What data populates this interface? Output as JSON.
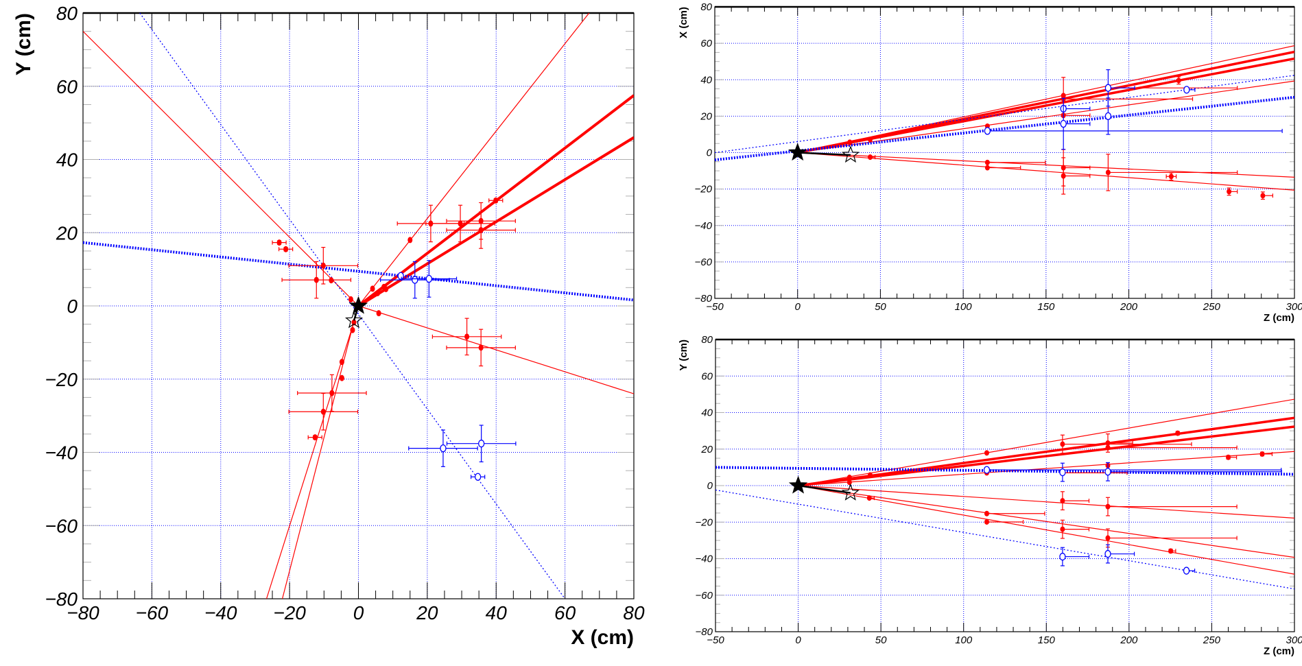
{
  "colors": {
    "track_red": "#ff0000",
    "track_blue": "#0000ff",
    "grid": "#0000ff",
    "vertex": "#000000"
  },
  "chart_data": [
    {
      "type": "scatter",
      "view": "XY",
      "xlabel": "X (cm)",
      "ylabel": "Y (cm)",
      "xlim": [
        -80,
        80
      ],
      "ylim": [
        -80,
        80
      ],
      "xticks": [
        "−80",
        "−60",
        "−40",
        "−20",
        "0",
        "20",
        "40",
        "60",
        "80"
      ],
      "yticks": [
        "−80",
        "−60",
        "−40",
        "−20",
        "0",
        "20",
        "40",
        "60",
        "80"
      ],
      "xtick_values": [
        -80,
        -60,
        -40,
        -20,
        0,
        20,
        40,
        60,
        80
      ],
      "ytick_values": [
        -80,
        -60,
        -40,
        -20,
        0,
        20,
        40,
        60,
        80
      ],
      "x_minor_step": 5,
      "y_minor_step": 5,
      "grid": true,
      "tracks": [
        {
          "color": "red",
          "style": "thick",
          "from": [
            0,
            0
          ],
          "to": [
            80,
            57.5
          ]
        },
        {
          "color": "red",
          "style": "thick",
          "from": [
            0,
            0
          ],
          "to": [
            80,
            46
          ]
        },
        {
          "color": "red",
          "style": "thin",
          "from": [
            0,
            0
          ],
          "to": [
            67,
            80
          ]
        },
        {
          "color": "red",
          "style": "thin",
          "from": [
            0,
            0
          ],
          "to": [
            -80,
            75
          ]
        },
        {
          "color": "red",
          "style": "thin",
          "from": [
            0,
            0
          ],
          "to": [
            80,
            -24
          ]
        },
        {
          "color": "red",
          "style": "thin",
          "from": [
            -1.5,
            -5
          ],
          "to": [
            -26.7,
            -80
          ]
        },
        {
          "color": "red",
          "style": "thin",
          "from": [
            -1.5,
            -5
          ],
          "to": [
            -22.1,
            -80
          ]
        },
        {
          "color": "blue",
          "style": "thick-dotted",
          "from": [
            -80,
            17.3
          ],
          "to": [
            80,
            1.6
          ]
        },
        {
          "color": "blue",
          "style": "thin-dotted",
          "from": [
            -63.5,
            80
          ],
          "to": [
            60,
            -80
          ]
        }
      ],
      "points": {
        "red": [
          [
            -23,
            17.3,
            2,
            2,
            0.5
          ],
          [
            -21.1,
            15.5,
            2,
            2,
            0.5
          ],
          [
            -10.2,
            11,
            10,
            10,
            5
          ],
          [
            -12.2,
            7.1,
            10,
            10,
            5
          ],
          [
            -7.9,
            7,
            0,
            0,
            0
          ],
          [
            -2.2,
            1.8,
            0,
            0,
            0
          ],
          [
            4.1,
            4.7,
            0,
            0,
            0
          ],
          [
            5.6,
            3.5,
            0,
            0,
            0
          ],
          [
            7.4,
            5.2,
            0,
            0,
            0
          ],
          [
            8,
            4.6,
            0,
            0,
            0
          ],
          [
            15,
            18,
            0,
            0,
            0
          ],
          [
            21,
            22.5,
            9.7,
            9.7,
            5
          ],
          [
            29.6,
            22.5,
            10,
            10,
            5
          ],
          [
            35.6,
            23.2,
            10,
            10,
            5
          ],
          [
            35.6,
            20.7,
            10,
            10,
            5
          ],
          [
            39.9,
            28.8,
            2,
            2,
            0.5
          ],
          [
            5.9,
            -2,
            0,
            0,
            0
          ],
          [
            31.5,
            -8.4,
            10,
            10,
            5
          ],
          [
            35.6,
            -11.4,
            10,
            10,
            5
          ],
          [
            -1.3,
            -4.5,
            0,
            0,
            0
          ],
          [
            -1.7,
            -6.6,
            0,
            0,
            0
          ],
          [
            -4.8,
            -15.3,
            0,
            0,
            0
          ],
          [
            -4.8,
            -19.7,
            0,
            0,
            0
          ],
          [
            -7.7,
            -23.8,
            10,
            10,
            5
          ],
          [
            -10.2,
            -28.9,
            10,
            10,
            5
          ],
          [
            -12.6,
            -35.9,
            2,
            2,
            0.5
          ]
        ],
        "blue": [
          [
            12.3,
            8.2,
            0,
            0,
            0
          ],
          [
            16.4,
            7.1,
            10,
            10,
            5
          ],
          [
            20.5,
            7.4,
            8,
            8,
            5
          ],
          [
            24.6,
            -38.9,
            10,
            10,
            5
          ],
          [
            35.7,
            -37.6,
            10,
            10,
            5
          ],
          [
            34.7,
            -46.7,
            2,
            2,
            0.5
          ]
        ]
      },
      "point_format": [
        "x",
        "y",
        "ex_low",
        "ex_high",
        "ey"
      ],
      "vertices": {
        "primary": [
          0,
          0
        ],
        "secondary": [
          -1.3,
          -4.0
        ]
      }
    },
    {
      "type": "scatter",
      "view": "ZX",
      "xlabel": "Z (cm)",
      "ylabel": "X (cm)",
      "xlim": [
        -50,
        300
      ],
      "ylim": [
        -80,
        80
      ],
      "xticks": [
        "−50",
        "0",
        "50",
        "100",
        "150",
        "200",
        "250",
        "300"
      ],
      "yticks": [
        "−80",
        "−60",
        "−40",
        "−20",
        "0",
        "20",
        "40",
        "60",
        "80"
      ],
      "xtick_values": [
        -50,
        0,
        50,
        100,
        150,
        200,
        250,
        300
      ],
      "ytick_values": [
        -80,
        -60,
        -40,
        -20,
        0,
        20,
        40,
        60,
        80
      ],
      "x_minor_step": 10,
      "y_minor_step": 5,
      "grid": true,
      "tracks": [
        {
          "color": "red",
          "style": "thick",
          "from": [
            0,
            0
          ],
          "to": [
            300,
            55.3
          ]
        },
        {
          "color": "red",
          "style": "thick",
          "from": [
            0,
            0
          ],
          "to": [
            300,
            51.6
          ]
        },
        {
          "color": "red",
          "style": "thin",
          "from": [
            0,
            0
          ],
          "to": [
            300,
            58.7
          ]
        },
        {
          "color": "red",
          "style": "thin",
          "from": [
            0,
            0
          ],
          "to": [
            300,
            39.3
          ]
        },
        {
          "color": "red",
          "style": "thin",
          "from": [
            0,
            0
          ],
          "to": [
            300,
            -13.5
          ]
        },
        {
          "color": "red",
          "style": "thin",
          "from": [
            0,
            0
          ],
          "to": [
            300,
            -20.6
          ]
        },
        {
          "color": "blue",
          "style": "thick-dotted",
          "from": [
            -50,
            -4
          ],
          "to": [
            300,
            30.4
          ]
        },
        {
          "color": "blue",
          "style": "thin-dotted",
          "from": [
            -50,
            0
          ],
          "to": [
            300,
            42.4
          ]
        }
      ],
      "points": {
        "red": [
          [
            31.5,
            5.7,
            0,
            0,
            0
          ],
          [
            43.8,
            7.2,
            0,
            0,
            0
          ],
          [
            43.8,
            -2.5,
            0,
            3,
            0
          ],
          [
            114.6,
            14.5,
            0,
            0,
            0
          ],
          [
            114.6,
            -5.4,
            0,
            35,
            0
          ],
          [
            114.6,
            -8.3,
            0,
            20,
            0
          ],
          [
            160.5,
            31.3,
            0,
            0,
            10
          ],
          [
            160.5,
            29.4,
            0,
            78,
            0
          ],
          [
            160.5,
            20.4,
            0,
            16,
            0
          ],
          [
            160.5,
            -8.3,
            0,
            16,
            10
          ],
          [
            160.5,
            -12.8,
            0,
            16,
            10
          ],
          [
            187.5,
            35.5,
            0,
            78,
            0
          ],
          [
            187.5,
            -10.9,
            0,
            78,
            10
          ],
          [
            230.1,
            39.6,
            0,
            0,
            2
          ],
          [
            225.6,
            -13.1,
            3,
            3,
            2
          ],
          [
            260.5,
            -21.4,
            0,
            5,
            2
          ],
          [
            280.9,
            -23.6,
            0,
            6,
            2
          ]
        ],
        "blue": [
          [
            114.6,
            11.9,
            0,
            178,
            0
          ],
          [
            160.5,
            24.1,
            0,
            16,
            0
          ],
          [
            160.5,
            15.8,
            0,
            16,
            14
          ],
          [
            187.5,
            35.5,
            0,
            16,
            10
          ],
          [
            187.5,
            20,
            0,
            0,
            10
          ],
          [
            234.9,
            34.5,
            0,
            5,
            1
          ]
        ]
      },
      "point_format": [
        "x",
        "y",
        "ex_low",
        "ex_high",
        "ey"
      ],
      "vertices": {
        "primary": [
          0,
          0
        ],
        "secondary": [
          32,
          -1.3
        ]
      }
    },
    {
      "type": "scatter",
      "view": "ZY",
      "xlabel": "Z (cm)",
      "ylabel": "Y (cm)",
      "xlim": [
        -50,
        300
      ],
      "ylim": [
        -80,
        80
      ],
      "xticks": [
        "−50",
        "0",
        "50",
        "100",
        "150",
        "200",
        "250",
        "300"
      ],
      "yticks": [
        "−80",
        "−60",
        "−40",
        "−20",
        "0",
        "20",
        "40",
        "60",
        "80"
      ],
      "xtick_values": [
        -50,
        0,
        50,
        100,
        150,
        200,
        250,
        300
      ],
      "ytick_values": [
        -80,
        -60,
        -40,
        -20,
        0,
        20,
        40,
        60,
        80
      ],
      "x_minor_step": 10,
      "y_minor_step": 5,
      "grid": true,
      "tracks": [
        {
          "color": "red",
          "style": "thin",
          "from": [
            0,
            0
          ],
          "to": [
            300,
            47.3
          ]
        },
        {
          "color": "red",
          "style": "thick",
          "from": [
            0,
            0
          ],
          "to": [
            300,
            37.1
          ]
        },
        {
          "color": "red",
          "style": "thick",
          "from": [
            0,
            0
          ],
          "to": [
            300,
            32.3
          ]
        },
        {
          "color": "red",
          "style": "thin",
          "from": [
            0,
            0
          ],
          "to": [
            300,
            18.7
          ]
        },
        {
          "color": "red",
          "style": "thin",
          "from": [
            0,
            0
          ],
          "to": [
            300,
            -17.8
          ]
        },
        {
          "color": "red",
          "style": "thin",
          "from": [
            0,
            0
          ],
          "to": [
            300,
            -39.3
          ]
        },
        {
          "color": "red",
          "style": "thin",
          "from": [
            0,
            0
          ],
          "to": [
            300,
            -48.5
          ]
        },
        {
          "color": "blue",
          "style": "thick-dotted",
          "from": [
            -50,
            10
          ],
          "to": [
            300,
            6.2
          ]
        },
        {
          "color": "blue",
          "style": "thin-dotted",
          "from": [
            -50,
            -2.4
          ],
          "to": [
            300,
            -56.6
          ]
        }
      ],
      "points": {
        "red": [
          [
            31,
            4.5,
            0,
            0,
            0
          ],
          [
            31,
            1.8,
            0,
            0,
            0
          ],
          [
            43.5,
            5.8,
            0,
            0,
            0
          ],
          [
            43,
            -6.8,
            0,
            3,
            0
          ],
          [
            114,
            17.9,
            0,
            0,
            0
          ],
          [
            114,
            7,
            0,
            0,
            0
          ],
          [
            114,
            -15.3,
            0,
            35,
            0
          ],
          [
            114,
            -19.9,
            0,
            22,
            0
          ],
          [
            159.8,
            22.7,
            0,
            78,
            5
          ],
          [
            159.8,
            7,
            0,
            39,
            0
          ],
          [
            159.8,
            -8.3,
            0,
            16,
            5
          ],
          [
            159.8,
            -23.9,
            0,
            16,
            5
          ],
          [
            187.2,
            23.3,
            0,
            15,
            5
          ],
          [
            187.2,
            20.8,
            0,
            78,
            0
          ],
          [
            187.2,
            11,
            0,
            0,
            0
          ],
          [
            187.2,
            -11.5,
            0,
            78,
            5
          ],
          [
            187.2,
            -28.7,
            0,
            78,
            5
          ],
          [
            229.4,
            28.7,
            0,
            0,
            1
          ],
          [
            225.2,
            -35.8,
            0,
            3,
            1
          ],
          [
            260,
            15.5,
            0,
            5,
            1
          ],
          [
            280.5,
            17.3,
            0,
            6,
            1
          ]
        ],
        "blue": [
          [
            114,
            8.6,
            0,
            178,
            0
          ],
          [
            159.8,
            7.3,
            0,
            0,
            5
          ],
          [
            159.8,
            -38.9,
            0,
            16,
            5
          ],
          [
            187.2,
            7.6,
            0,
            105,
            5
          ],
          [
            187.2,
            -37.4,
            0,
            16,
            5
          ],
          [
            234.7,
            -46.6,
            0,
            5,
            1
          ]
        ]
      },
      "point_format": [
        "x",
        "y",
        "ex_low",
        "ex_high",
        "ey"
      ],
      "vertices": {
        "primary": [
          0,
          0
        ],
        "secondary": [
          31.6,
          -4.0
        ]
      }
    }
  ]
}
